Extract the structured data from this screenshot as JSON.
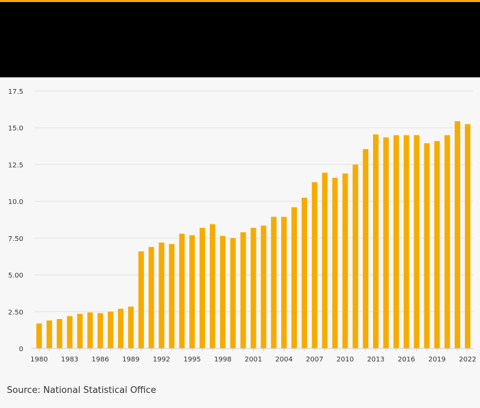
{
  "colors": {
    "accent": "#f5a800",
    "header_bg": "#000000",
    "bar": "#f6ab00",
    "grid": "#e3e3e3",
    "axis_text": "#333333",
    "background": "#f7f7f7"
  },
  "source": "Source: National Statistical Office",
  "chart_data": {
    "type": "bar",
    "title": "",
    "xlabel": "",
    "ylabel": "",
    "ylim": [
      0,
      17.5
    ],
    "yticks": [
      0,
      2.5,
      5,
      7.5,
      10,
      12.5,
      15,
      17.5
    ],
    "ytick_labels": [
      "0",
      "2.50",
      "5.00",
      "7.50",
      "10.0",
      "12.5",
      "15.0",
      "17.5"
    ],
    "grid": true,
    "categories": [
      "1980",
      "1981",
      "1982",
      "1983",
      "1984",
      "1985",
      "1986",
      "1987",
      "1988",
      "1989",
      "1990",
      "1991",
      "1992",
      "1993",
      "1994",
      "1995",
      "1996",
      "1997",
      "1998",
      "1999",
      "2000",
      "2001",
      "2002",
      "2003",
      "2004",
      "2005",
      "2006",
      "2007",
      "2008",
      "2009",
      "2010",
      "2011",
      "2012",
      "2013",
      "2014",
      "2015",
      "2016",
      "2017",
      "2018",
      "2019",
      "2020",
      "2021",
      "2022"
    ],
    "values": [
      1.7,
      1.9,
      2.0,
      2.2,
      2.35,
      2.45,
      2.4,
      2.5,
      2.7,
      2.85,
      6.6,
      6.9,
      7.2,
      7.1,
      7.8,
      7.7,
      8.2,
      8.45,
      7.65,
      7.5,
      7.9,
      8.2,
      8.35,
      8.95,
      8.95,
      9.6,
      10.25,
      11.3,
      11.95,
      11.6,
      11.9,
      12.5,
      13.55,
      14.55,
      14.35,
      14.5,
      14.5,
      14.5,
      13.95,
      14.1,
      14.5,
      15.45,
      15.25
    ],
    "xtick_labels": [
      "1980",
      "1983",
      "1986",
      "1989",
      "1992",
      "1995",
      "1998",
      "2001",
      "2004",
      "2007",
      "2010",
      "2013",
      "2016",
      "2019",
      "2022"
    ]
  }
}
